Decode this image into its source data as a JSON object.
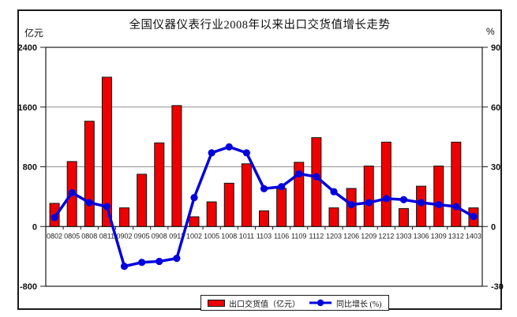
{
  "title": "全国仪器仪表行业2008年以来出口交货值增长走势",
  "chart_data": {
    "type": "bar+line",
    "title": "全国仪器仪表行业2008年以来出口交货值增长走势",
    "left_axis": {
      "unit": "亿元",
      "min": -800,
      "max": 2400,
      "ticks": [
        2400,
        1600,
        800,
        0,
        -800
      ]
    },
    "right_axis": {
      "unit": "%",
      "min": -30,
      "max": 90,
      "ticks": [
        90,
        60,
        30,
        0,
        -30
      ]
    },
    "categories": [
      "0802",
      "0805",
      "0808",
      "0811",
      "0902",
      "0905",
      "0908",
      "0911",
      "1002",
      "1005",
      "1008",
      "1011",
      "1103",
      "1106",
      "1109",
      "1112",
      "1203",
      "1206",
      "1209",
      "1212",
      "1303",
      "1306",
      "1309",
      "1312",
      "1403"
    ],
    "series": [
      {
        "name": "出口交货值（亿元）",
        "type": "bar",
        "axis": "left",
        "color": "#ee0000",
        "stroke": "#111111",
        "values": [
          310,
          870,
          1410,
          2000,
          250,
          700,
          1120,
          1620,
          130,
          330,
          580,
          840,
          210,
          510,
          860,
          1190,
          250,
          510,
          810,
          1130,
          240,
          540,
          810,
          1130,
          250
        ]
      },
      {
        "name": "同比增长 (%)",
        "type": "line",
        "axis": "right",
        "color": "#0000dd",
        "values": [
          4.5,
          17,
          12,
          10,
          -20,
          -18,
          -17.5,
          -16,
          14.5,
          37,
          40,
          37,
          19,
          20,
          26.5,
          25,
          17.5,
          11,
          12,
          14,
          13.5,
          12,
          11,
          10,
          5
        ]
      }
    ],
    "grid": true,
    "gridline_color": "#8f8f8f",
    "axis_color": "#1b1b1b",
    "legend_position": "bottom"
  }
}
